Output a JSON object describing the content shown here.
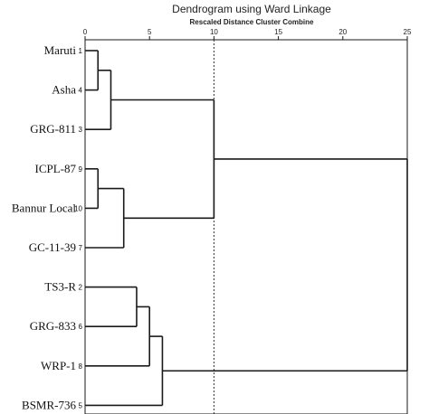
{
  "chart_data": {
    "type": "dendrogram",
    "title": "Dendrogram using Ward Linkage",
    "subtitle": "Rescaled Distance Cluster Combine",
    "xlim": [
      0,
      25
    ],
    "x_ticks": [
      0,
      5,
      10,
      15,
      20,
      25
    ],
    "reference_line": 10,
    "leaves": [
      {
        "label": "Maruti",
        "id": "1"
      },
      {
        "label": "Asha",
        "id": "4"
      },
      {
        "label": "GRG-811",
        "id": "3"
      },
      {
        "label": "ICPL-87",
        "id": "9"
      },
      {
        "label": "Bannur Local",
        "id": "10"
      },
      {
        "label": "GC-11-39",
        "id": "7"
      },
      {
        "label": "TS3-R",
        "id": "2"
      },
      {
        "label": "GRG-833",
        "id": "6"
      },
      {
        "label": "WRP-1",
        "id": "8"
      },
      {
        "label": "BSMR-736",
        "id": "5"
      }
    ],
    "merges": [
      {
        "a": "L0",
        "b": "L1",
        "height": 1
      },
      {
        "a": "L3",
        "b": "L4",
        "height": 1
      },
      {
        "a": "M0",
        "b": "L2",
        "height": 2
      },
      {
        "a": "M1",
        "b": "L5",
        "height": 3
      },
      {
        "a": "L6",
        "b": "L7",
        "height": 4
      },
      {
        "a": "M4",
        "b": "L8",
        "height": 5
      },
      {
        "a": "M5",
        "b": "L9",
        "height": 6
      },
      {
        "a": "M2",
        "b": "M3",
        "height": 10
      },
      {
        "a": "M7",
        "b": "M6",
        "height": 25
      }
    ]
  }
}
